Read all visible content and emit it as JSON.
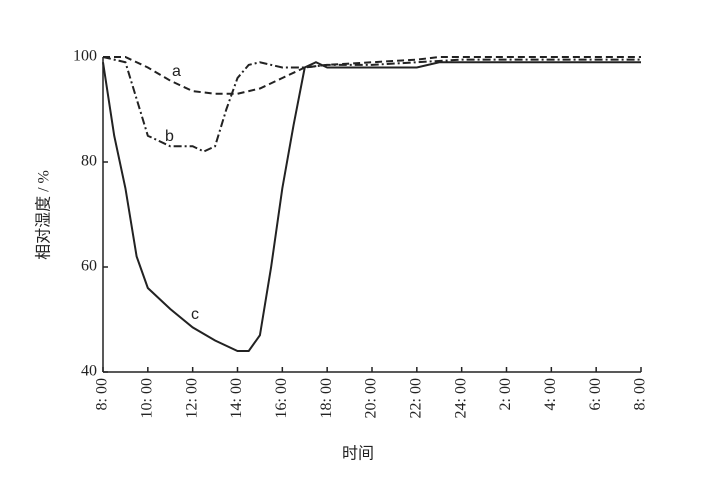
{
  "chart_data": {
    "type": "line",
    "ylabel": "相对湿度 / %",
    "xlabel": "时间",
    "xlim": [
      0,
      24
    ],
    "xticks": [
      {
        "value": 0,
        "label": "8: 00"
      },
      {
        "value": 2,
        "label": "10: 00"
      },
      {
        "value": 4,
        "label": "12: 00"
      },
      {
        "value": 6,
        "label": "14: 00"
      },
      {
        "value": 8,
        "label": "16: 00"
      },
      {
        "value": 10,
        "label": "18: 00"
      },
      {
        "value": 12,
        "label": "20: 00"
      },
      {
        "value": 14,
        "label": "22: 00"
      },
      {
        "value": 16,
        "label": "24: 00"
      },
      {
        "value": 18,
        "label": "2: 00"
      },
      {
        "value": 20,
        "label": "4: 00"
      },
      {
        "value": 22,
        "label": "6: 00"
      },
      {
        "value": 24,
        "label": "8: 00"
      }
    ],
    "ylim": [
      40,
      100
    ],
    "yticks": [
      40,
      60,
      80,
      100
    ],
    "grid": false,
    "series": [
      {
        "name": "a",
        "color": "#222222",
        "dash": "dashed",
        "x": [
          0,
          1,
          2,
          3,
          4,
          5,
          6,
          7,
          8,
          9,
          10,
          12,
          14,
          15,
          24
        ],
        "values": [
          100,
          100,
          98,
          95.5,
          93.5,
          93,
          93,
          94,
          96,
          98,
          98.5,
          99,
          99.5,
          100,
          100
        ]
      },
      {
        "name": "b",
        "color": "#222222",
        "dash": "dashdot",
        "x": [
          0,
          1,
          1.5,
          2,
          3,
          4,
          4.5,
          5,
          5.5,
          6,
          6.5,
          7,
          8,
          9,
          10,
          12,
          14,
          16,
          24
        ],
        "values": [
          100,
          99,
          92,
          85,
          83,
          83,
          82,
          83,
          90,
          96,
          98.5,
          99,
          98,
          98,
          98.5,
          98.5,
          99,
          99.5,
          99.5
        ]
      },
      {
        "name": "c",
        "color": "#222222",
        "dash": "solid",
        "x": [
          0,
          0.5,
          1,
          1.5,
          2,
          3,
          4,
          5,
          6,
          6.5,
          7,
          7.5,
          8,
          8.5,
          9,
          9.5,
          10,
          14,
          15,
          24
        ],
        "values": [
          99,
          85,
          75,
          62,
          56,
          52,
          48.5,
          46,
          44,
          44,
          47,
          60,
          75,
          87,
          98,
          99,
          98,
          98,
          99,
          99
        ]
      }
    ]
  }
}
